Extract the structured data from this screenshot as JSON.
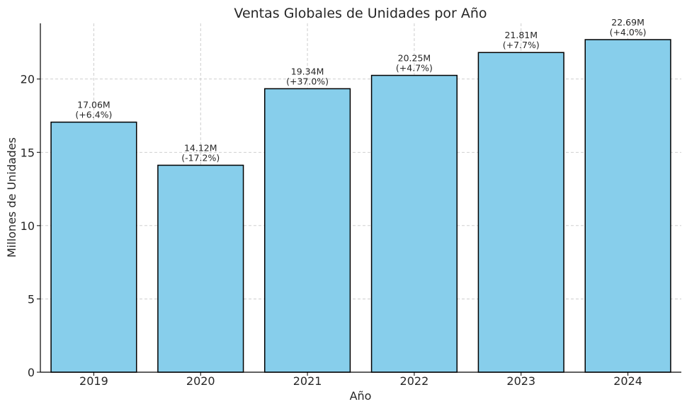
{
  "chart_data": {
    "type": "bar",
    "title": "Ventas Globales de Unidades por Año",
    "xlabel": "Año",
    "ylabel": "Millones de Unidades",
    "categories": [
      "2019",
      "2020",
      "2021",
      "2022",
      "2023",
      "2024"
    ],
    "values": [
      17.06,
      14.12,
      19.34,
      20.25,
      21.81,
      22.69
    ],
    "bar_labels": [
      [
        "17.06M",
        "(+6.4%)"
      ],
      [
        "14.12M",
        "(-17.2%)"
      ],
      [
        "19.34M",
        "(+37.0%)"
      ],
      [
        "20.25M",
        "(+4.7%)"
      ],
      [
        "21.81M",
        "(+7.7%)"
      ],
      [
        "22.69M",
        "(+4.0%)"
      ]
    ],
    "ylim": [
      0,
      23.8
    ],
    "yticks": [
      0,
      5,
      10,
      15,
      20
    ],
    "grid": true,
    "colors": {
      "bar": "#87CEEB",
      "edge": "#000000",
      "grid": "#c8c8c8"
    }
  }
}
